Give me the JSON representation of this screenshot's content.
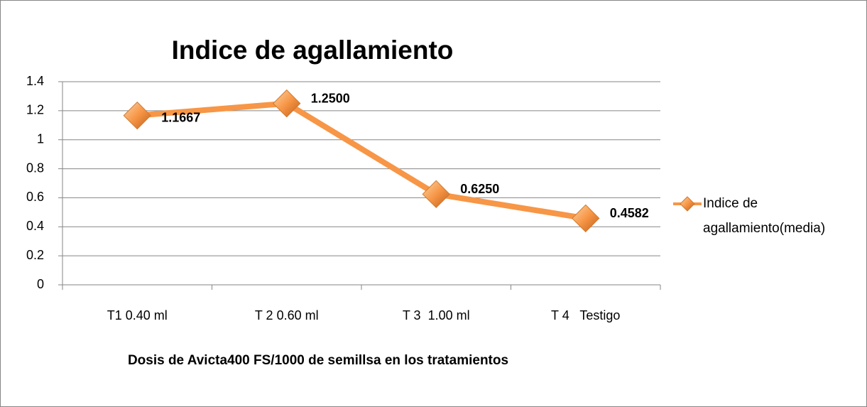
{
  "chart_data": {
    "type": "line",
    "title": "Indice de agallamiento",
    "x_label": "Dosis de Avicta400 FS/1000 de semillsa en los tratamientos",
    "categories": [
      "T1 0.40 ml",
      "T 2 0.60 ml",
      "T 3  1.00 ml",
      "T 4   Testigo"
    ],
    "series": [
      {
        "name": "Indice de agallamiento(media)",
        "color": "#f79646",
        "values": [
          1.1667,
          1.25,
          0.625,
          0.4582
        ],
        "value_labels": [
          "1.1667",
          "1.2500",
          "0.6250",
          "0.4582"
        ]
      }
    ],
    "ylim": [
      0,
      1.4
    ],
    "yticks": [
      0,
      0.2,
      0.4,
      0.6,
      0.8,
      1,
      1.2,
      1.4
    ],
    "grid": true,
    "legend": "right"
  }
}
